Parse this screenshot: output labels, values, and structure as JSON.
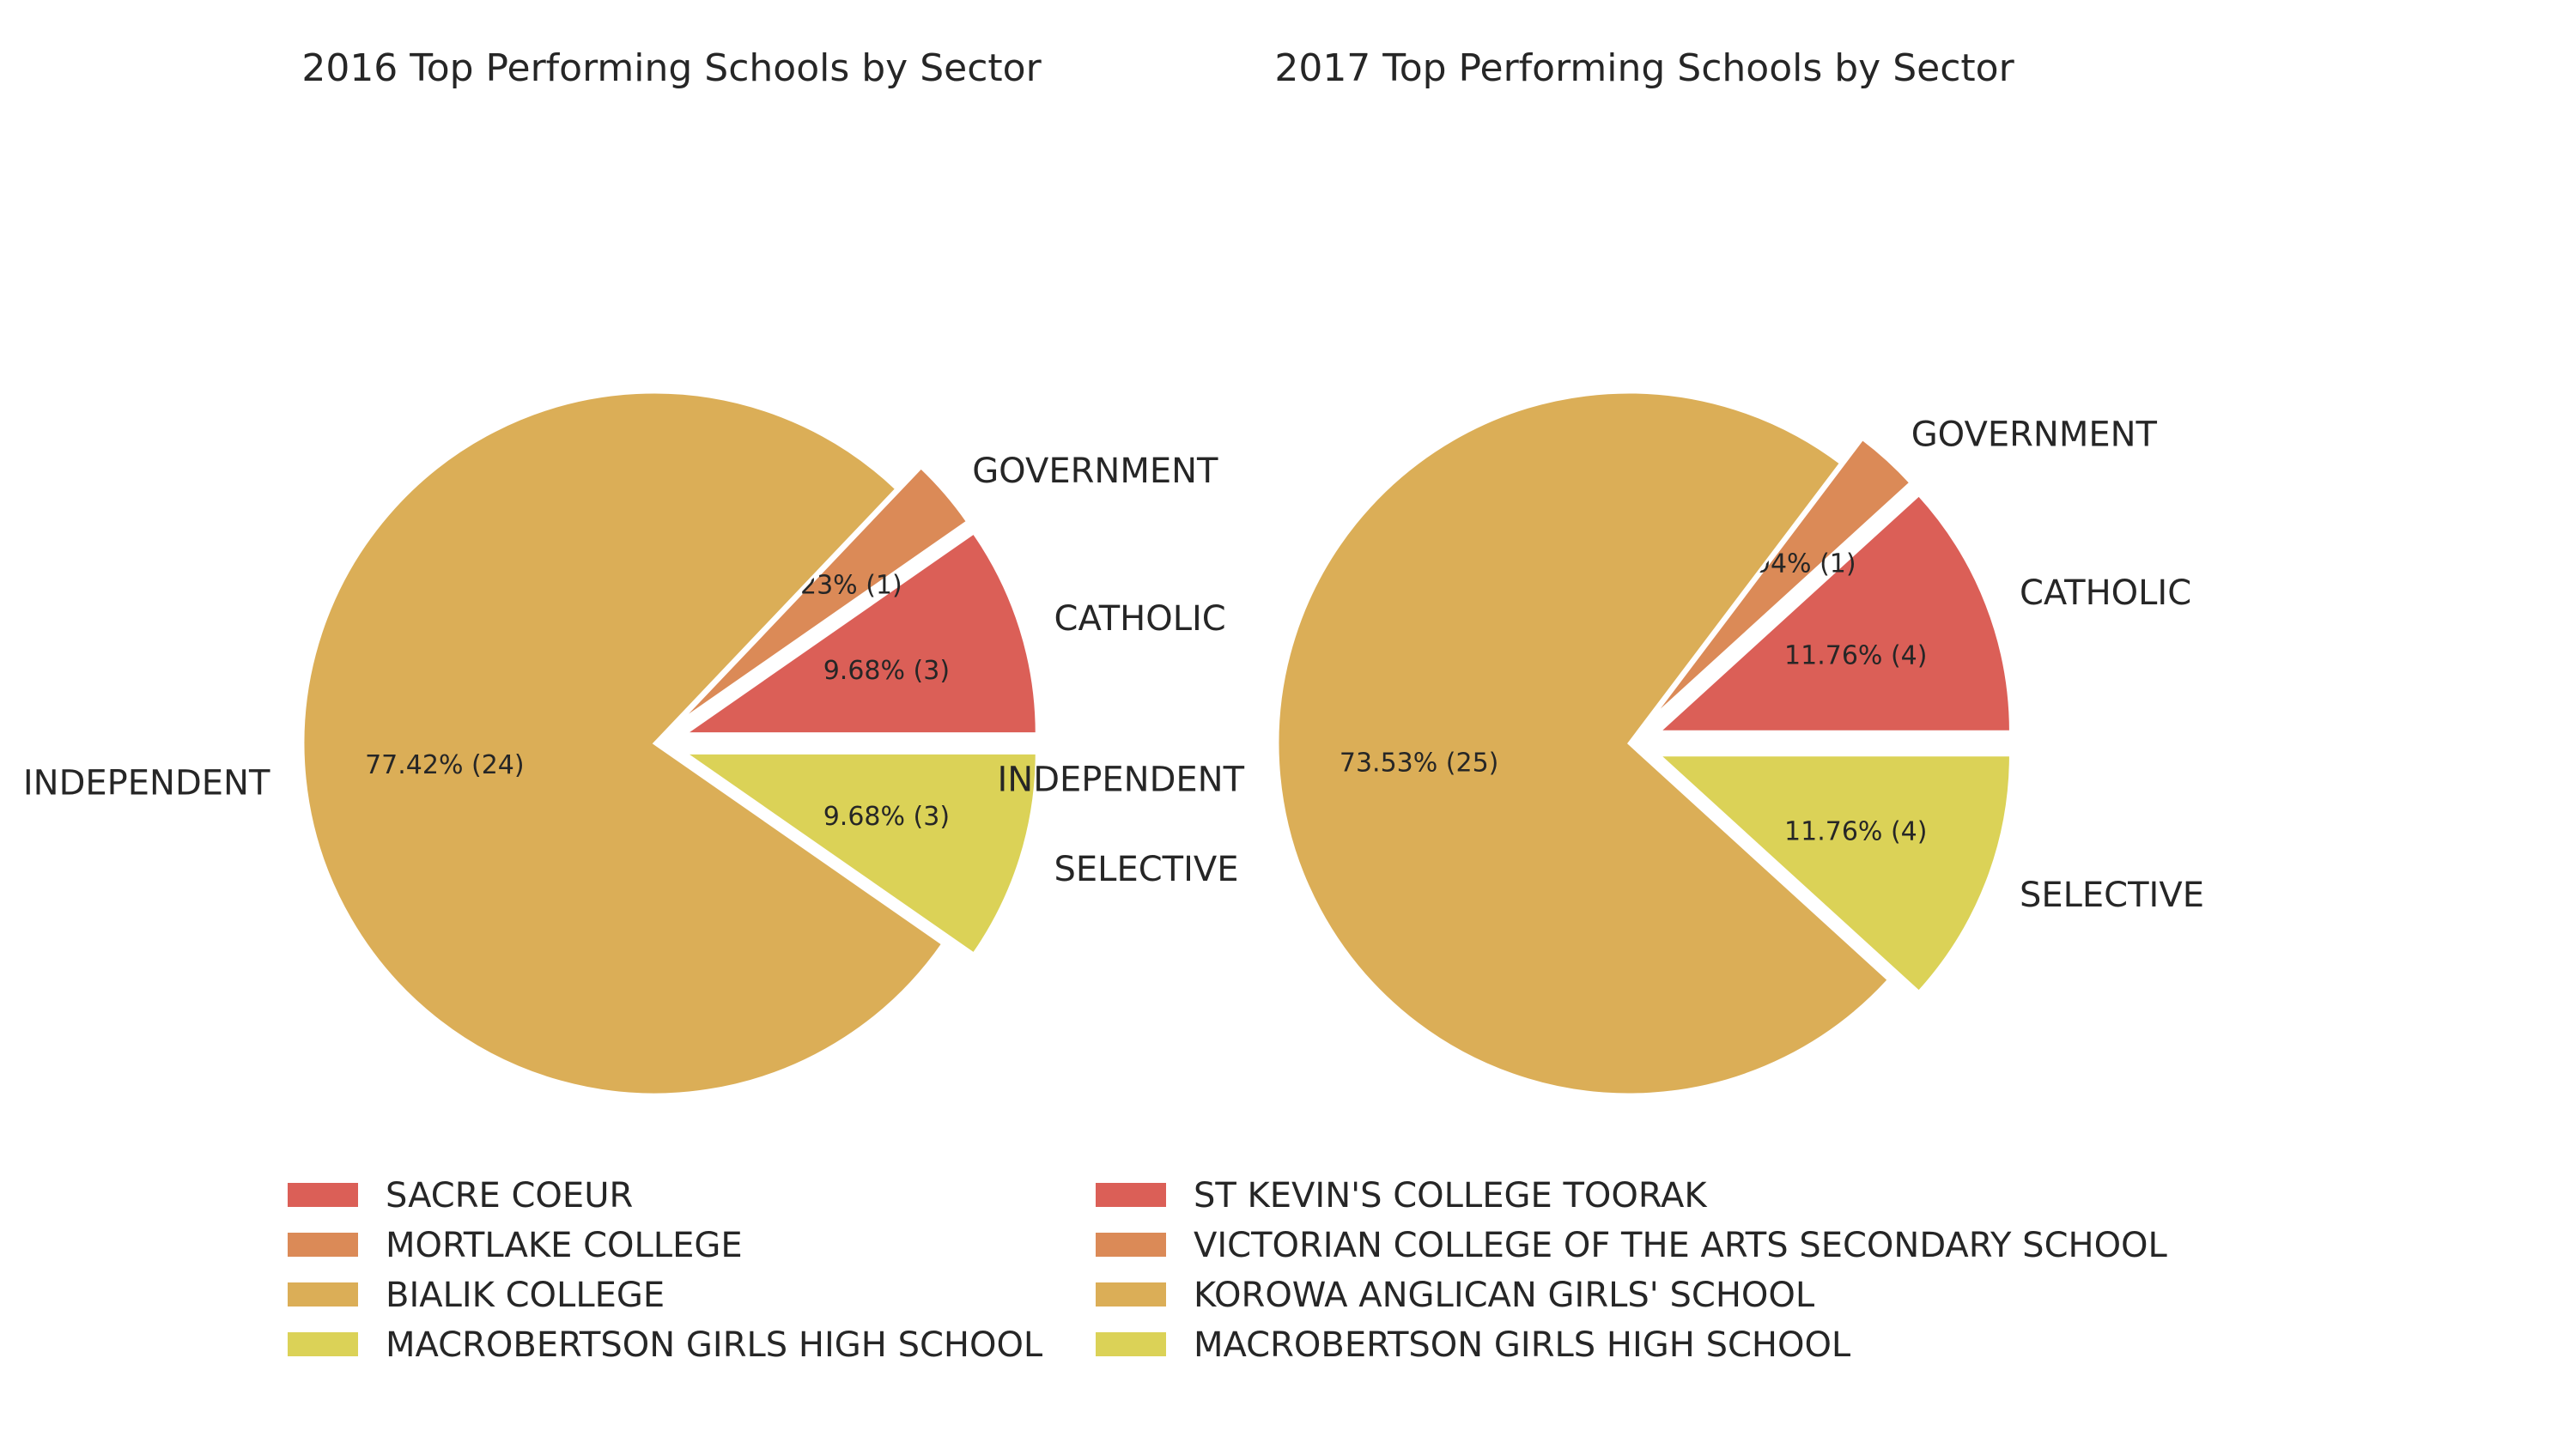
{
  "chart_data": [
    {
      "type": "pie",
      "title": "2016 Top Performing Schools by Sector",
      "slices": [
        {
          "category": "CATHOLIC",
          "value": 3,
          "percent_label": "9.68%  (3)",
          "color": "#DB5F57"
        },
        {
          "category": "GOVERNMENT",
          "value": 1,
          "percent_label": "3.23%  (1)",
          "color": "#DB8A57"
        },
        {
          "category": "INDEPENDENT",
          "value": 24,
          "percent_label": "77.42%  (24)",
          "color": "#DBAE57"
        },
        {
          "category": "SELECTIVE",
          "value": 3,
          "percent_label": "9.68%  (3)",
          "color": "#DBD257"
        }
      ],
      "legend": {
        "placement": "below",
        "entries": [
          "SACRE COEUR",
          "MORTLAKE COLLEGE",
          "BIALIK COLLEGE",
          "MACROBERTSON GIRLS HIGH SCHOOL"
        ]
      }
    },
    {
      "type": "pie",
      "title": "2017 Top Performing Schools by Sector",
      "slices": [
        {
          "category": "CATHOLIC",
          "value": 4,
          "percent_label": "11.76%  (4)",
          "color": "#DB5F57"
        },
        {
          "category": "GOVERNMENT",
          "value": 1,
          "percent_label": "2.94%  (1)",
          "color": "#DB8A57"
        },
        {
          "category": "INDEPENDENT",
          "value": 25,
          "percent_label": "73.53%  (25)",
          "color": "#DBAE57"
        },
        {
          "category": "SELECTIVE",
          "value": 4,
          "percent_label": "11.76%  (4)",
          "color": "#DBD257"
        }
      ],
      "legend": {
        "placement": "below",
        "entries": [
          "ST KEVIN'S COLLEGE TOORAK",
          "VICTORIAN COLLEGE OF THE ARTS SECONDARY SCHOOL",
          "KOROWA ANGLICAN GIRLS' SCHOOL",
          "MACROBERTSON GIRLS HIGH SCHOOL"
        ]
      }
    }
  ]
}
